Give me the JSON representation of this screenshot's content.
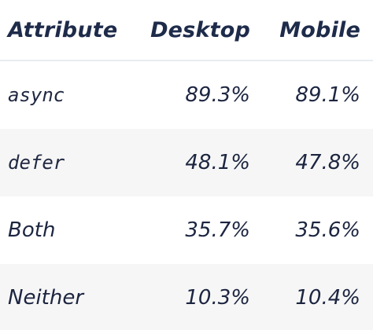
{
  "table": {
    "headers": {
      "attribute": "Attribute",
      "desktop": "Desktop",
      "mobile": "Mobile"
    },
    "rows": [
      {
        "attribute": "async",
        "attribute_style": "code",
        "desktop": "89.3%",
        "mobile": "89.1%"
      },
      {
        "attribute": "defer",
        "attribute_style": "code",
        "desktop": "48.1%",
        "mobile": "47.8%"
      },
      {
        "attribute": "Both",
        "attribute_style": "plain",
        "desktop": "35.7%",
        "mobile": "35.6%"
      },
      {
        "attribute": "Neither",
        "attribute_style": "plain",
        "desktop": "10.3%",
        "mobile": "10.4%"
      }
    ]
  },
  "colors": {
    "text": "#1c2540",
    "header_text": "#1e2b4a",
    "striped_row_bg": "#f6f6f6",
    "header_border": "#e9ecef"
  }
}
